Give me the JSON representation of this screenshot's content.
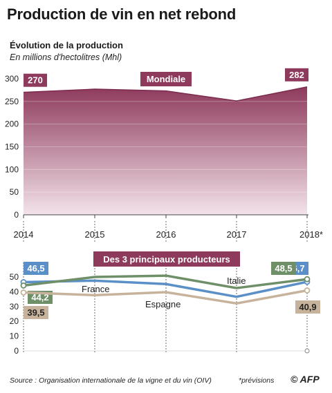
{
  "header": {
    "title": "Production de vin en net rebond",
    "subtitle": "Évolution de la production",
    "unit": "En millions d'hectolitres (Mhl)"
  },
  "footer": {
    "source": "Source : Organisation internationale de la vigne et du vin (OIV)",
    "note": "*prévisions",
    "logo": "© AFP"
  },
  "chart_data": [
    {
      "type": "area",
      "title": "Mondiale",
      "x": [
        "2014",
        "2015",
        "2016",
        "2017",
        "2018*"
      ],
      "values": [
        270,
        277,
        273,
        251,
        282
      ],
      "ylim": [
        0,
        300
      ],
      "yticks": [
        0,
        50,
        100,
        150,
        200,
        250,
        300
      ],
      "data_labels": [
        {
          "index": 0,
          "text": "270"
        },
        {
          "index": 4,
          "text": "282"
        }
      ],
      "colors": {
        "top": "#8e3a5c",
        "bottom": "#f3e3ea",
        "line": "#7d2d50"
      }
    },
    {
      "type": "line",
      "title": "Des 3 principaux producteurs",
      "x": [
        "2014",
        "2015",
        "2016",
        "2017",
        "2018*"
      ],
      "ylim": [
        0,
        50
      ],
      "yticks": [
        0,
        10,
        20,
        30,
        40,
        50
      ],
      "series": [
        {
          "name": "France",
          "values": [
            46.5,
            47.5,
            45.2,
            36.6,
            46.7
          ],
          "color": "#5b8fc7",
          "labels": [
            {
              "index": 0,
              "text": "46,5"
            },
            {
              "index": 4,
              "text": "46,7"
            }
          ]
        },
        {
          "name": "Italie",
          "values": [
            44.2,
            50.0,
            50.9,
            42.5,
            48.5
          ],
          "color": "#6e8f68",
          "labels": [
            {
              "index": 0,
              "text": "44,2"
            },
            {
              "index": 4,
              "text": "48,5"
            }
          ]
        },
        {
          "name": "Espagne",
          "values": [
            39.5,
            37.7,
            39.7,
            32.1,
            40.9
          ],
          "color": "#c7b39b",
          "labels": [
            {
              "index": 0,
              "text": "39,5"
            },
            {
              "index": 4,
              "text": "40,9"
            }
          ]
        }
      ]
    }
  ]
}
